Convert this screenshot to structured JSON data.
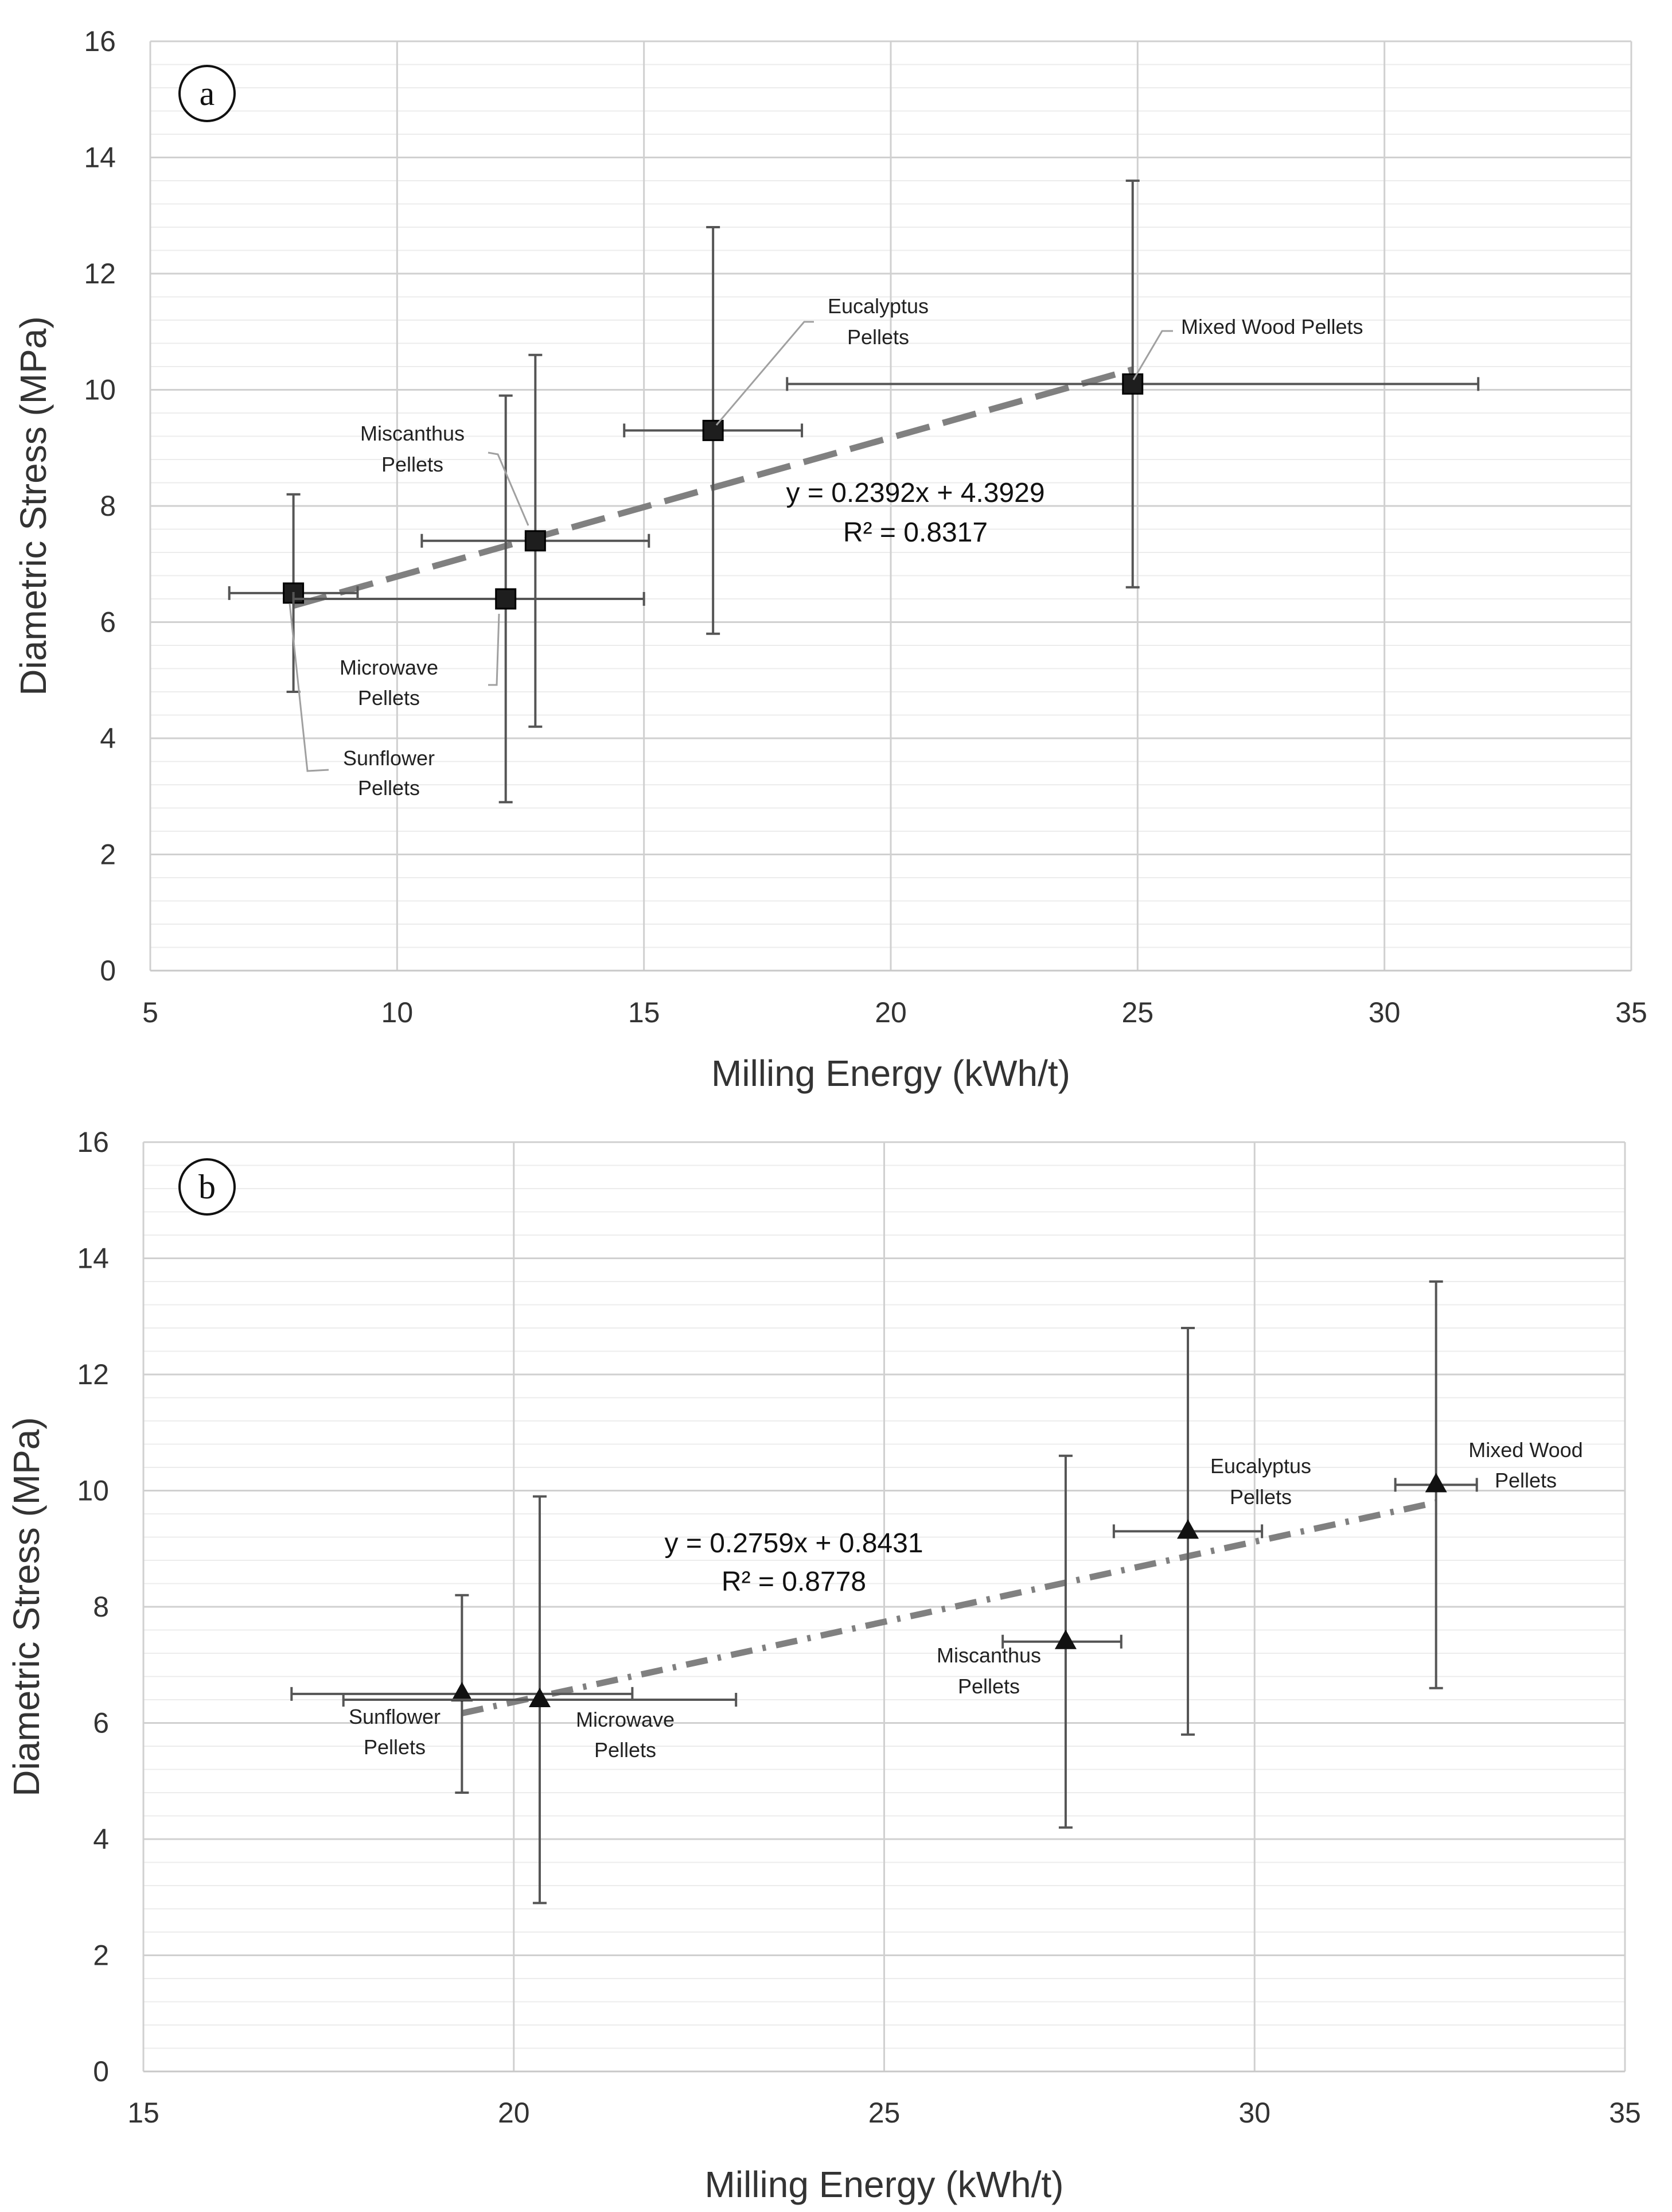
{
  "chart_data": [
    {
      "panel": "a",
      "type": "scatter",
      "xlabel": "Milling Energy (kWh/t)",
      "ylabel": "Diametric Stress (MPa)",
      "xlim": [
        5,
        35
      ],
      "ylim": [
        0,
        16
      ],
      "xticks": [
        5,
        10,
        15,
        20,
        25,
        30,
        35
      ],
      "yticks": [
        0,
        2,
        4,
        6,
        8,
        10,
        12,
        14,
        16
      ],
      "marker": "square",
      "points": [
        {
          "label": "Sunflower\nPellets",
          "x": 7.9,
          "y": 6.5,
          "xerr": [
            6.6,
            9.2
          ],
          "yerr": [
            4.8,
            8.2
          ]
        },
        {
          "label": "Microwave\nPellets",
          "x": 12.2,
          "y": 6.4,
          "xerr": [
            7.9,
            15.0
          ],
          "yerr": [
            2.9,
            9.9
          ]
        },
        {
          "label": "Miscanthus\nPellets",
          "x": 12.8,
          "y": 7.4,
          "xerr": [
            10.5,
            15.1
          ],
          "yerr": [
            4.2,
            10.6
          ]
        },
        {
          "label": "Eucalyptus\nPellets",
          "x": 16.4,
          "y": 9.3,
          "xerr": [
            14.6,
            18.2
          ],
          "yerr": [
            5.8,
            12.8
          ]
        },
        {
          "label": "Mixed Wood Pellets",
          "x": 24.9,
          "y": 10.1,
          "xerr": [
            17.9,
            31.9
          ],
          "yerr": [
            6.6,
            13.6
          ]
        }
      ],
      "trendline": {
        "slope": 0.2392,
        "intercept": 4.3929,
        "x_range": [
          7.9,
          24.9
        ],
        "style": "dashed"
      },
      "equation": "y = 0.2392x + 4.3929",
      "r2": "R² = 0.8317"
    },
    {
      "panel": "b",
      "type": "scatter",
      "xlabel": "Milling Energy (kWh/t)",
      "ylabel": "Diametric Stress (MPa)",
      "xlim": [
        15,
        35
      ],
      "ylim": [
        0,
        16
      ],
      "xticks": [
        15,
        20,
        25,
        30,
        35
      ],
      "yticks": [
        0,
        2,
        4,
        6,
        8,
        10,
        12,
        14,
        16
      ],
      "marker": "triangle",
      "points": [
        {
          "label": "Sunflower\nPellets",
          "x": 19.3,
          "y": 6.5,
          "xerr": [
            17.0,
            21.6
          ],
          "yerr": [
            4.8,
            8.2
          ]
        },
        {
          "label": "Microwave\nPellets",
          "x": 20.35,
          "y": 6.4,
          "xerr": [
            17.7,
            23.0
          ],
          "yerr": [
            2.9,
            9.9
          ]
        },
        {
          "label": "Miscanthus\nPellets",
          "x": 27.45,
          "y": 7.4,
          "xerr": [
            26.6,
            28.2
          ],
          "yerr": [
            4.2,
            10.6
          ]
        },
        {
          "label": "Eucalyptus\nPellets",
          "x": 29.1,
          "y": 9.3,
          "xerr": [
            28.1,
            30.1
          ],
          "yerr": [
            5.8,
            12.8
          ]
        },
        {
          "label": "Mixed Wood\nPellets",
          "x": 32.45,
          "y": 10.1,
          "xerr": [
            31.9,
            33.0
          ],
          "yerr": [
            6.6,
            13.6
          ]
        }
      ],
      "trendline": {
        "slope": 0.2759,
        "intercept": 0.8431,
        "x_range": [
          19.3,
          32.45
        ],
        "style": "dash-dot"
      },
      "equation": "y = 0.2759x + 0.8431",
      "r2": "R² = 0.8778"
    }
  ]
}
